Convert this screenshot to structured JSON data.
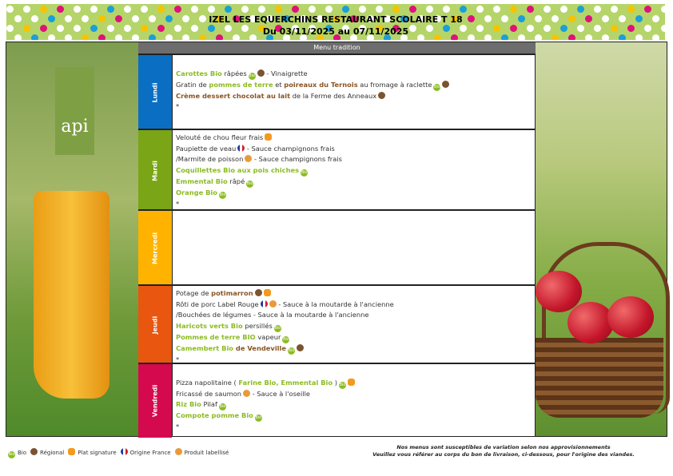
{
  "header": {
    "title": "IZEL LES EQUERCHINS RESTAURANT SCOLAIRE T 18",
    "dates": "Du 03/11/2025 au 07/11/2025"
  },
  "column_header": "Menu tradition",
  "logo_text": "api",
  "colors": {
    "lundi": "#0a6fc2",
    "mardi": "#79a516",
    "mercredi": "#ffb300",
    "jeudi": "#e8560f",
    "vendredi": "#d4094e",
    "bio_text": "#8cbb22",
    "regional_text": "#8a5524"
  },
  "days": [
    {
      "name": "Lundi",
      "lines": [
        [],
        [
          {
            "t": "Carottes Bio",
            "s": "g"
          },
          {
            "t": " râpées",
            "s": "n"
          },
          {
            "i": "bio"
          },
          {
            "i": "reg"
          },
          {
            "t": " - Vinaigrette",
            "s": "n"
          }
        ],
        [
          {
            "t": "Gratin de ",
            "s": "n"
          },
          {
            "t": "pommes de terre",
            "s": "g"
          },
          {
            "t": " et ",
            "s": "n"
          },
          {
            "t": "poireaux du Ternois",
            "s": "b"
          },
          {
            "t": " au fromage à raclette",
            "s": "n"
          },
          {
            "i": "bio"
          },
          {
            "i": "reg"
          }
        ],
        [
          {
            "t": "Crème dessert chocolat au lait",
            "s": "b"
          },
          {
            "t": " de la Ferme des Anneaux",
            "s": "n"
          },
          {
            "i": "reg"
          }
        ],
        [
          {
            "t": "*",
            "s": "n"
          }
        ]
      ]
    },
    {
      "name": "Mardi",
      "lines": [
        [
          {
            "t": "Velouté de chou fleur frais",
            "s": "n"
          },
          {
            "i": "sig"
          }
        ],
        [
          {
            "t": "Paupiette de veau",
            "s": "n"
          },
          {
            "i": "fr"
          },
          {
            "t": " - Sauce champignons frais",
            "s": "n"
          }
        ],
        [
          {
            "t": "/Marmite de poisson",
            "s": "n"
          },
          {
            "i": "lab"
          },
          {
            "t": " - Sauce champignons frais",
            "s": "n"
          }
        ],
        [
          {
            "t": "Coquillettes Bio aux pois chiches",
            "s": "g"
          },
          {
            "i": "bio"
          }
        ],
        [
          {
            "t": "Emmental Bio",
            "s": "g"
          },
          {
            "t": " râpé",
            "s": "n"
          },
          {
            "i": "bio"
          }
        ],
        [
          {
            "t": "Orange Bio",
            "s": "g"
          },
          {
            "i": "bio"
          }
        ],
        [
          {
            "t": "*",
            "s": "n"
          }
        ]
      ]
    },
    {
      "name": "Mercredi",
      "lines": []
    },
    {
      "name": "Jeudi",
      "lines": [
        [
          {
            "t": "Potage de ",
            "s": "n"
          },
          {
            "t": "potimarron",
            "s": "b"
          },
          {
            "i": "reg"
          },
          {
            "i": "sig"
          }
        ],
        [
          {
            "t": "Rôti de porc Label Rouge",
            "s": "n"
          },
          {
            "i": "fr"
          },
          {
            "i": "lab"
          },
          {
            "t": " - Sauce à la moutarde à l'ancienne",
            "s": "n"
          }
        ],
        [
          {
            "t": "/Bouchées de légumes - Sauce à la moutarde à l'ancienne",
            "s": "n"
          }
        ],
        [
          {
            "t": "Haricots verts Bio",
            "s": "g"
          },
          {
            "t": " persillés",
            "s": "n"
          },
          {
            "i": "bio"
          }
        ],
        [
          {
            "t": "Pommes de terre BIO",
            "s": "g"
          },
          {
            "t": " vapeur",
            "s": "n"
          },
          {
            "i": "bio"
          }
        ],
        [
          {
            "t": "Camembert Bio",
            "s": "g"
          },
          {
            "t": " de Vendeville",
            "s": "b"
          },
          {
            "i": "bio"
          },
          {
            "i": "reg"
          }
        ],
        [
          {
            "t": "*",
            "s": "n"
          }
        ]
      ]
    },
    {
      "name": "Vendredi",
      "lines": [
        [],
        [
          {
            "t": "Pizza napolitaine ( ",
            "s": "n"
          },
          {
            "t": "Farine Bio, Emmental Bio",
            "s": "g"
          },
          {
            "t": " )",
            "s": "n"
          },
          {
            "i": "bio"
          },
          {
            "i": "sig"
          }
        ],
        [
          {
            "t": "Fricassé de saumon",
            "s": "n"
          },
          {
            "i": "lab"
          },
          {
            "t": " - Sauce à l'oseille",
            "s": "n"
          }
        ],
        [
          {
            "t": "Riz Bio",
            "s": "g"
          },
          {
            "t": " Pilaf",
            "s": "n"
          },
          {
            "i": "bio"
          }
        ],
        [
          {
            "t": "Compote pomme Bio",
            "s": "g"
          },
          {
            "i": "bio"
          }
        ],
        [
          {
            "t": "*",
            "s": "n"
          }
        ]
      ]
    }
  ],
  "legend": [
    {
      "icon": "bio",
      "label": "Bio"
    },
    {
      "icon": "reg",
      "label": "Régional"
    },
    {
      "icon": "sig",
      "label": "Plat signature"
    },
    {
      "icon": "fr",
      "label": "Origine France"
    },
    {
      "icon": "lab",
      "label": "Produit labellisé"
    }
  ],
  "note": [
    "Nos menus sont susceptibles de variation selon nos approvisionnements",
    "Veuillez vous référer au corps du bon de livraison, ci-dessous, pour l'origine des viandes."
  ]
}
